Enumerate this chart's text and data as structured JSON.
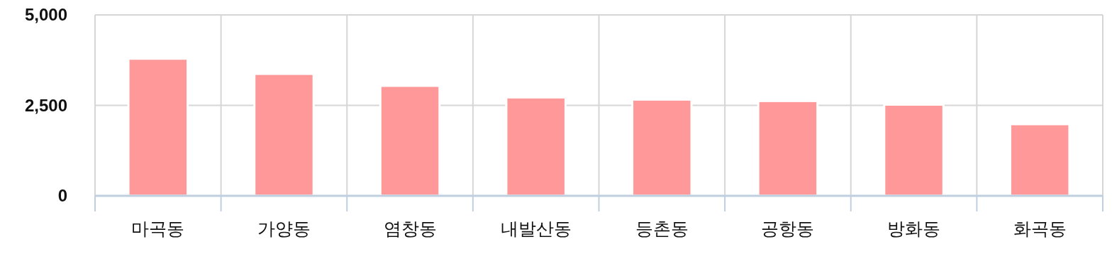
{
  "chart_data": {
    "type": "bar",
    "categories": [
      "마곡동",
      "가양동",
      "염창동",
      "내발산동",
      "등촌동",
      "공항동",
      "방화동",
      "화곡동"
    ],
    "values": [
      3790,
      3370,
      3040,
      2720,
      2660,
      2620,
      2520,
      1980
    ],
    "color": "#ff9999",
    "ylim": [
      0,
      5000
    ],
    "yticks": [
      0,
      {
        "value": 2500,
        "label": "2,500"
      },
      {
        "value": 5000,
        "label": "5,000"
      }
    ],
    "grid": true
  }
}
